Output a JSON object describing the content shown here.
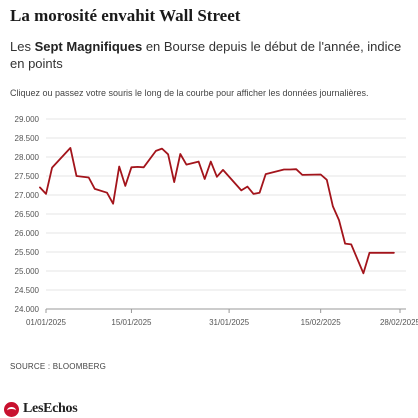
{
  "header": {
    "title": "La morosité envahit Wall Street",
    "subtitle_prefix": "Les ",
    "subtitle_bold": "Sept Magnifiques",
    "subtitle_rest": " en Bourse depuis le début de l'année, indice en points",
    "instruction": "Cliquez ou passez votre souris le long de la courbe pour afficher les données journalières."
  },
  "footer": {
    "source": "SOURCE : BLOOMBERG",
    "logo": "LesEchos"
  },
  "colors": {
    "line": "#a3141b",
    "grid": "#e6e6e6",
    "axis_text": "#555555",
    "logo": "#c8102e"
  },
  "chart_data": {
    "type": "line",
    "title": "La morosité envahit Wall Street",
    "xlabel": "",
    "ylabel": "",
    "x_ticks": [
      "01/01/2025",
      "15/01/2025",
      "31/01/2025",
      "15/02/2025",
      "28/02/2025"
    ],
    "x_tick_days": [
      1,
      15,
      31,
      46,
      59
    ],
    "x_range_days": [
      1,
      59
    ],
    "y_ticks": [
      "24.000",
      "24.500",
      "25.000",
      "25.500",
      "26.000",
      "26.500",
      "27.000",
      "27.500",
      "28.000",
      "28.500",
      "29.000"
    ],
    "ylim": [
      24000,
      29000
    ],
    "grid": true,
    "series": [
      {
        "dates": [
          "31/12/2024",
          "01/01/2025",
          "02/01/2025",
          "05/01/2025",
          "06/01/2025",
          "08/01/2025",
          "09/01/2025",
          "11/01/2025",
          "12/01/2025",
          "13/01/2025",
          "14/01/2025",
          "15/01/2025",
          "16/01/2025",
          "17/01/2025",
          "19/01/2025",
          "20/01/2025",
          "21/01/2025",
          "22/01/2025",
          "23/01/2025",
          "24/01/2025",
          "26/01/2025",
          "27/01/2025",
          "28/01/2025",
          "29/01/2025",
          "30/01/2025",
          "02/02/2025",
          "03/02/2025",
          "04/02/2025",
          "05/02/2025",
          "06/02/2025",
          "09/02/2025",
          "10/02/2025",
          "11/02/2025",
          "12/02/2025",
          "15/02/2025",
          "16/02/2025",
          "17/02/2025",
          "18/02/2025",
          "19/02/2025",
          "20/02/2025",
          "22/02/2025",
          "23/02/2025",
          "24/02/2025",
          "25/02/2025",
          "26/02/2025",
          "27/02/2025"
        ],
        "values": [
          27200,
          27030,
          27720,
          28240,
          27500,
          27460,
          27160,
          27060,
          26770,
          27750,
          27240,
          27730,
          27740,
          27730,
          28160,
          28220,
          28070,
          27340,
          28080,
          27800,
          27880,
          27420,
          27880,
          27480,
          27660,
          27120,
          27220,
          27030,
          27060,
          27550,
          27670,
          27670,
          27680,
          27530,
          27540,
          27400,
          26700,
          26340,
          25720,
          25700,
          24940,
          25480,
          25480,
          25480,
          25480,
          25480
        ]
      }
    ]
  }
}
